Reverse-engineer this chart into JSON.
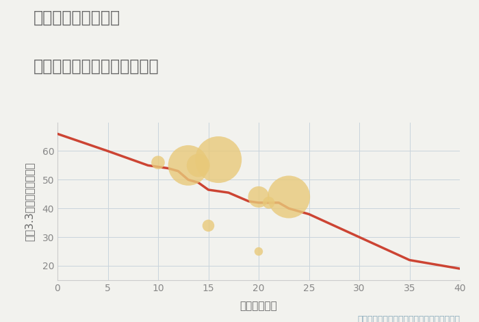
{
  "title_line1": "兵庫県姫路市飯田の",
  "title_line2": "築年数別中古マンション価格",
  "xlabel": "築年数（年）",
  "ylabel": "坪（3.3㎡）単価（万円）",
  "annotation": "円の大きさは、取引のあった物件面積を示す",
  "background_color": "#f2f2ee",
  "plot_bg_color": "#f2f2ee",
  "title_area_color": "#ffffff",
  "line_color": "#cc4433",
  "line_x": [
    0,
    5,
    9,
    10,
    11,
    12,
    13,
    14,
    15,
    17,
    18,
    19,
    20,
    21,
    22,
    23,
    25,
    30,
    35,
    40
  ],
  "line_y": [
    66,
    60,
    55,
    54.5,
    54,
    53,
    50,
    49,
    46.5,
    45.5,
    44,
    42.5,
    42,
    42,
    42,
    40,
    38,
    30,
    22,
    19
  ],
  "scatter_x": [
    10,
    13,
    14,
    15,
    16,
    20,
    20,
    21,
    23
  ],
  "scatter_y": [
    56,
    55,
    55,
    34,
    57,
    25,
    44,
    42,
    44
  ],
  "scatter_sizes": [
    200,
    1800,
    600,
    160,
    2400,
    80,
    500,
    160,
    2000
  ],
  "scatter_color": "#e8c97a",
  "scatter_alpha": 0.8,
  "xlim": [
    0,
    40
  ],
  "ylim": [
    15,
    70
  ],
  "xticks": [
    0,
    5,
    10,
    15,
    20,
    25,
    30,
    35,
    40
  ],
  "yticks": [
    20,
    30,
    40,
    50,
    60
  ],
  "title_color": "#666666",
  "title_fontsize": 17,
  "label_fontsize": 11,
  "tick_fontsize": 10,
  "annotation_color": "#8aaabb",
  "annotation_fontsize": 9
}
